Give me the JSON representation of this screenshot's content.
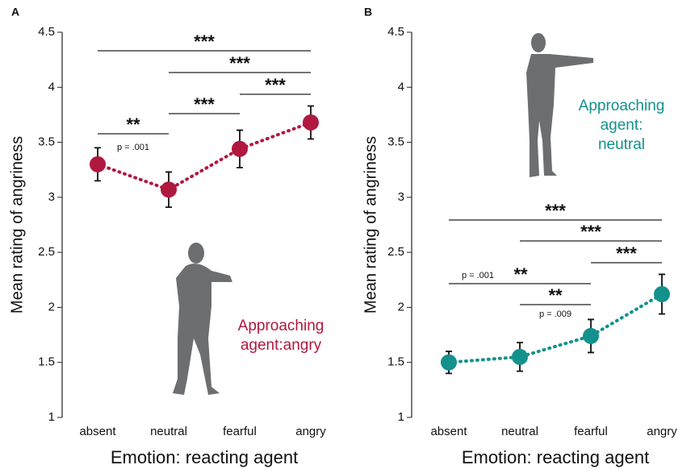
{
  "chart_data": [
    {
      "type": "line",
      "panel_label": "A",
      "categories": [
        "absent",
        "neutral",
        "fearful",
        "angry"
      ],
      "series": [
        {
          "color": "#b0183f",
          "values": [
            3.3,
            3.07,
            3.44,
            3.68
          ],
          "errors": [
            0.15,
            0.16,
            0.17,
            0.15
          ]
        }
      ],
      "ylim": [
        1,
        4.5
      ],
      "yticks": [
        1,
        1.5,
        2,
        2.5,
        3,
        3.5,
        4,
        4.5
      ],
      "xlabel": "Emotion: reacting agent",
      "ylabel": "Mean rating of angriness",
      "annotation": [
        "Approaching",
        "agent:angry"
      ],
      "brackets": [
        {
          "label": "***"
        },
        {
          "label": "***"
        },
        {
          "label": "***"
        },
        {
          "label": "***"
        },
        {
          "label": "**",
          "note": "p = .001"
        }
      ]
    },
    {
      "type": "line",
      "panel_label": "B",
      "categories": [
        "absent",
        "neutral",
        "fearful",
        "angry"
      ],
      "series": [
        {
          "color": "#13918c",
          "values": [
            1.5,
            1.55,
            1.74,
            2.12
          ],
          "errors": [
            0.1,
            0.13,
            0.15,
            0.18
          ]
        }
      ],
      "ylim": [
        1,
        4.5
      ],
      "yticks": [
        1,
        1.5,
        2,
        2.5,
        3,
        3.5,
        4,
        4.5
      ],
      "xlabel": "Emotion: reacting agent",
      "ylabel": "Mean rating of angriness",
      "annotation": [
        "Approaching",
        "agent:",
        "neutral"
      ],
      "brackets": [
        {
          "label": "***"
        },
        {
          "label": "***"
        },
        {
          "label": "***"
        },
        {
          "label": "**",
          "note": "p = .001"
        },
        {
          "label": "**",
          "note": "p = .009"
        }
      ]
    }
  ]
}
